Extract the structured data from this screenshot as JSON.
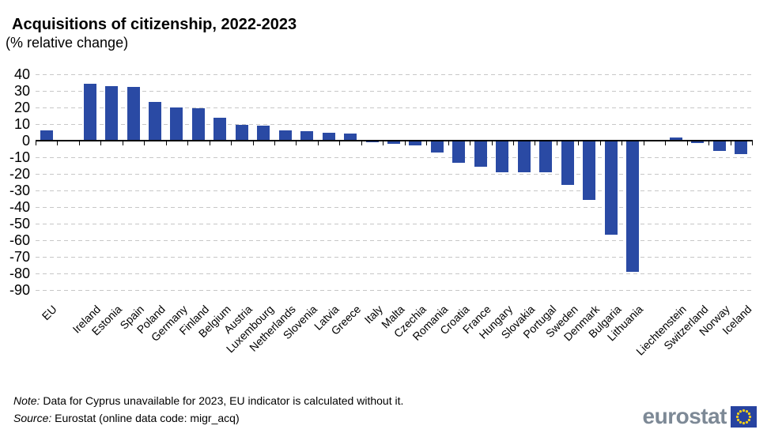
{
  "title": "Acquisitions of citizenship, 2022-2023",
  "subtitle": "(% relative change)",
  "footer": {
    "note_label": "Note:",
    "note_text": " Data for Cyprus unavailable for 2023, EU indicator is calculated without it.",
    "source_label": "Source:",
    "source_text": " Eurostat (online data code: migr_acq)"
  },
  "logo": {
    "text": "eurostat"
  },
  "chart_data": {
    "type": "bar",
    "title": "Acquisitions of citizenship, 2022-2023",
    "subtitle": "(% relative change)",
    "ylabel": "% relative change",
    "ylim": [
      -90,
      40
    ],
    "ytick_step": 10,
    "grid": "horizontal dashed",
    "legend": "none",
    "bar_color": "#2a4aa4",
    "separator_gaps_after": [
      "EU",
      "Lithuania"
    ],
    "categories": [
      "EU",
      "Ireland",
      "Estonia",
      "Spain",
      "Poland",
      "Germany",
      "Finland",
      "Belgium",
      "Austria",
      "Luxembourg",
      "Netherlands",
      "Slovenia",
      "Latvia",
      "Greece",
      "Italy",
      "Malta",
      "Czechia",
      "Romania",
      "Croatia",
      "France",
      "Hungary",
      "Slovakia",
      "Portugal",
      "Sweden",
      "Denmark",
      "Bulgaria",
      "Lithuania",
      "Liechtenstein",
      "Switzerland",
      "Norway",
      "Iceland"
    ],
    "values": [
      6,
      34.5,
      33,
      32.5,
      23.5,
      20,
      19.5,
      14,
      9.5,
      9,
      6,
      5.5,
      5,
      4.5,
      -0.1,
      -1.5,
      -2.5,
      -6.5,
      -13,
      -15,
      -18.5,
      -18.5,
      -18.5,
      -26,
      -35,
      -56,
      -78.5,
      2,
      -1,
      -5.5,
      -7.5
    ]
  }
}
